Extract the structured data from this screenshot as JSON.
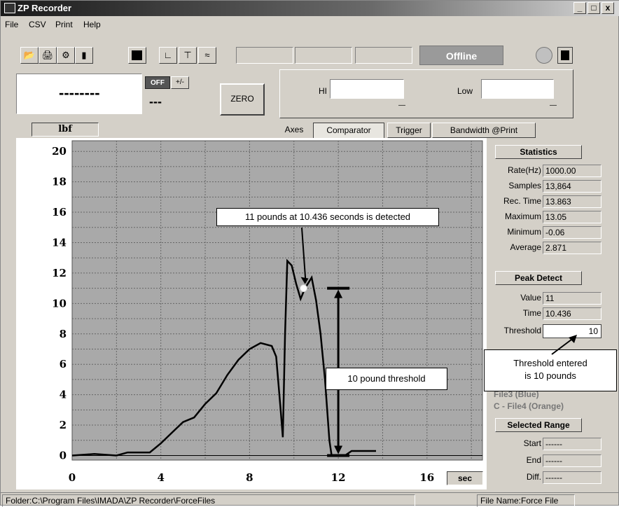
{
  "window": {
    "title": "ZP Recorder",
    "controls": [
      "_",
      "□",
      "x"
    ]
  },
  "menu": [
    "File",
    "CSV",
    "Print",
    "Help"
  ],
  "toolbar": {
    "status": "Offline"
  },
  "readout": {
    "value": "--------",
    "secondary": "---",
    "off_label": "OFF",
    "pm_label": "+/-",
    "zero_label": "ZERO"
  },
  "hilow": {
    "hi_label": "HI",
    "low_label": "Low",
    "hi_dash": "—",
    "low_dash": "—"
  },
  "unit": "lbf",
  "tabs": [
    "Axes",
    "Comparator",
    "Trigger",
    "Bandwidth @Print"
  ],
  "chart_data": {
    "type": "line",
    "x_ticks": [
      "0",
      "4",
      "8",
      "12",
      "16"
    ],
    "y_ticks": [
      "0",
      "2",
      "4",
      "6",
      "8",
      "10",
      "12",
      "14",
      "16",
      "18",
      "20"
    ],
    "xlim": [
      0,
      18.5
    ],
    "ylim": [
      -0.3,
      20.7
    ],
    "x_unit_button": "sec",
    "grid": true,
    "series": [
      {
        "points": [
          [
            0,
            0
          ],
          [
            1,
            0.1
          ],
          [
            2,
            0
          ],
          [
            2.5,
            0.2
          ],
          [
            3.5,
            0.2
          ],
          [
            4,
            0.8
          ],
          [
            4.5,
            1.5
          ],
          [
            5,
            2.2
          ],
          [
            5.5,
            2.5
          ],
          [
            6,
            3.4
          ],
          [
            6.5,
            4.1
          ],
          [
            7,
            5.3
          ],
          [
            7.5,
            6.3
          ],
          [
            8,
            7.0
          ],
          [
            8.5,
            7.4
          ],
          [
            9,
            7.2
          ],
          [
            9.2,
            6.5
          ],
          [
            9.4,
            3.0
          ],
          [
            9.5,
            1.2
          ],
          [
            9.6,
            8.0
          ],
          [
            9.7,
            12.8
          ],
          [
            9.9,
            12.5
          ],
          [
            10.1,
            11.3
          ],
          [
            10.3,
            10.3
          ],
          [
            10.5,
            11.0
          ],
          [
            10.8,
            11.7
          ],
          [
            11.0,
            10.2
          ],
          [
            11.2,
            8.0
          ],
          [
            11.4,
            5.0
          ],
          [
            11.6,
            1.0
          ],
          [
            11.7,
            0
          ],
          [
            12.3,
            0
          ],
          [
            12.6,
            0.3
          ],
          [
            13.7,
            0.3
          ]
        ]
      }
    ],
    "annotations": {
      "detect_label": "11 pounds at 10.436 seconds is detected",
      "threshold_label": "10 pound threshold",
      "detected_point": [
        10.436,
        11
      ],
      "threshold_bracket": {
        "x": 12,
        "from": 0,
        "to": 11
      }
    }
  },
  "stats": {
    "header": "Statistics",
    "rows": [
      {
        "label": "Rate(Hz)",
        "value": "1000.00"
      },
      {
        "label": "Samples",
        "value": "13,864"
      },
      {
        "label": "Rec. Time",
        "value": "13.863"
      },
      {
        "label": "Maximum",
        "value": "13.05"
      },
      {
        "label": "Minimum",
        "value": "-0.06"
      },
      {
        "label": "Average",
        "value": "2.871"
      }
    ],
    "peak_header": "Peak Detect",
    "peak_rows": [
      {
        "label": "Value",
        "value": "11"
      },
      {
        "label": "Time",
        "value": "10.436"
      }
    ],
    "threshold_label": "Threshold",
    "threshold_value": "10",
    "threshold_callout": "Threshold entered\nis 10 pounds",
    "file3": "File3 (Blue)",
    "file4": "C - File4 (Orange)",
    "range_header": "Selected Range",
    "range_rows": [
      {
        "label": "Start",
        "value": "------"
      },
      {
        "label": "End",
        "value": "------"
      },
      {
        "label": "Diff.",
        "value": "------"
      }
    ]
  },
  "statusbar": {
    "folder": "Folder:C:\\Program Files\\IMADA\\ZP Recorder\\ForceFiles",
    "file": "File Name:Force File"
  }
}
